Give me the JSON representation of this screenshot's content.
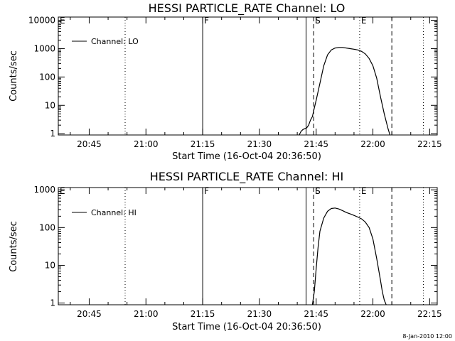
{
  "footer": {
    "date_stamp": "8-Jan-2010 12:00"
  },
  "chart_data": [
    {
      "type": "line",
      "title": "HESSI PARTICLE_RATE Channel: LO",
      "xlabel": "Start Time (16-Oct-04 20:36:50)",
      "ylabel": "Counts/sec",
      "y_scale": "log",
      "ylim": [
        0.9,
        13000
      ],
      "xlim": [
        "20:36:50",
        "22:17:00"
      ],
      "x_ticks": [
        "20:45",
        "21:00",
        "21:15",
        "21:30",
        "21:45",
        "22:00",
        "22:15"
      ],
      "y_ticks": [
        "1",
        "10",
        "100",
        "1000",
        "10000"
      ],
      "legend": {
        "position": "top-left",
        "entries": [
          "Channel: LO"
        ]
      },
      "grid": false,
      "markers": [
        {
          "label": "E",
          "time": "20:36:50",
          "style": "solid"
        },
        {
          "label": "",
          "time": "20:54:30",
          "style": "dotted"
        },
        {
          "label": "F",
          "time": "21:15:00",
          "style": "solid"
        },
        {
          "label": "",
          "time": "21:42:20",
          "style": "solid"
        },
        {
          "label": "S",
          "time": "21:44:20",
          "style": "dashed"
        },
        {
          "label": "E",
          "time": "21:56:30",
          "style": "dotted"
        },
        {
          "label": "",
          "time": "22:05:00",
          "style": "dashed"
        },
        {
          "label": "",
          "time": "22:13:20",
          "style": "dotted"
        }
      ],
      "series": [
        {
          "name": "Channel: LO",
          "x": [
            "21:40:30",
            "21:41:00",
            "21:41:30",
            "21:42:00",
            "21:42:30",
            "21:43:00",
            "21:43:30",
            "21:44:00",
            "21:44:30",
            "21:45:00",
            "21:46:00",
            "21:47:00",
            "21:48:00",
            "21:49:00",
            "21:50:00",
            "21:51:00",
            "21:52:00",
            "21:53:00",
            "21:54:00",
            "21:55:00",
            "21:56:00",
            "21:57:00",
            "21:58:00",
            "21:59:00",
            "22:00:00",
            "22:01:00",
            "22:02:00",
            "22:03:00",
            "22:04:00",
            "22:04:30"
          ],
          "y": [
            0.9,
            1.2,
            1.4,
            1.5,
            1.6,
            2,
            3,
            4,
            8,
            15,
            60,
            250,
            600,
            900,
            1050,
            1100,
            1100,
            1050,
            1000,
            950,
            900,
            800,
            650,
            450,
            250,
            90,
            20,
            5,
            1.5,
            0.9
          ]
        }
      ]
    },
    {
      "type": "line",
      "title": "HESSI PARTICLE_RATE Channel: HI",
      "xlabel": "Start Time (16-Oct-04 20:36:50)",
      "ylabel": "Counts/sec",
      "y_scale": "log",
      "ylim": [
        0.9,
        1150
      ],
      "xlim": [
        "20:36:50",
        "22:17:00"
      ],
      "x_ticks": [
        "20:45",
        "21:00",
        "21:15",
        "21:30",
        "21:45",
        "22:00",
        "22:15"
      ],
      "y_ticks": [
        "1",
        "10",
        "100",
        "1000"
      ],
      "legend": {
        "position": "top-left",
        "entries": [
          "Channel: HI"
        ]
      },
      "grid": false,
      "markers": [
        {
          "label": "E",
          "time": "20:36:50",
          "style": "solid"
        },
        {
          "label": "",
          "time": "20:54:30",
          "style": "dotted"
        },
        {
          "label": "F",
          "time": "21:15:00",
          "style": "solid"
        },
        {
          "label": "",
          "time": "21:42:20",
          "style": "solid"
        },
        {
          "label": "S",
          "time": "21:44:20",
          "style": "dashed"
        },
        {
          "label": "E",
          "time": "21:56:30",
          "style": "dotted"
        },
        {
          "label": "",
          "time": "22:05:00",
          "style": "dashed"
        },
        {
          "label": "",
          "time": "22:13:20",
          "style": "dotted"
        }
      ],
      "series": [
        {
          "name": "Channel: HI",
          "x": [
            "21:44:00",
            "21:44:30",
            "21:45:00",
            "21:45:30",
            "21:46:00",
            "21:47:00",
            "21:48:00",
            "21:49:00",
            "21:50:00",
            "21:51:00",
            "21:52:00",
            "21:53:00",
            "21:54:00",
            "21:55:00",
            "21:56:00",
            "21:57:00",
            "21:58:00",
            "21:59:00",
            "22:00:00",
            "22:01:00",
            "22:02:00",
            "22:02:30",
            "22:03:00",
            "22:03:30"
          ],
          "y": [
            0.9,
            2,
            8,
            30,
            80,
            180,
            270,
            320,
            330,
            310,
            280,
            250,
            230,
            210,
            190,
            170,
            140,
            100,
            50,
            15,
            4,
            2,
            1.2,
            0.9
          ]
        }
      ]
    }
  ]
}
